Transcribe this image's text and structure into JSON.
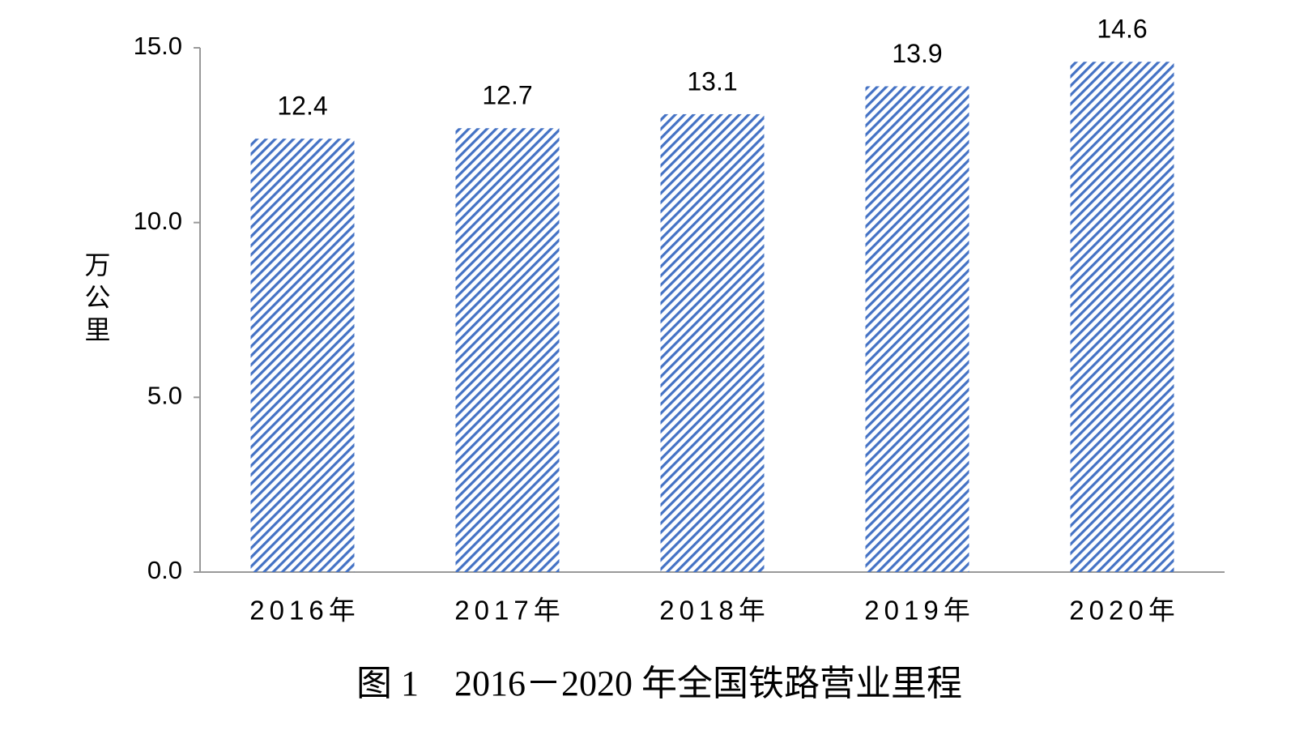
{
  "chart_data": {
    "type": "bar",
    "title": "图 1　2016－2020 年全国铁路营业里程",
    "y_label": "万公里",
    "categories": [
      "2016年",
      "2017年",
      "2018年",
      "2019年",
      "2020年"
    ],
    "values": [
      12.4,
      12.7,
      13.1,
      13.9,
      14.6
    ],
    "color": "#4472c4",
    "ylim": [
      0,
      15
    ],
    "yticks": [
      {
        "value": 0,
        "label": "0.0"
      },
      {
        "value": 5,
        "label": "5.0"
      },
      {
        "value": 10,
        "label": "10.0"
      },
      {
        "value": 15,
        "label": "15.0"
      }
    ],
    "grid": false
  }
}
